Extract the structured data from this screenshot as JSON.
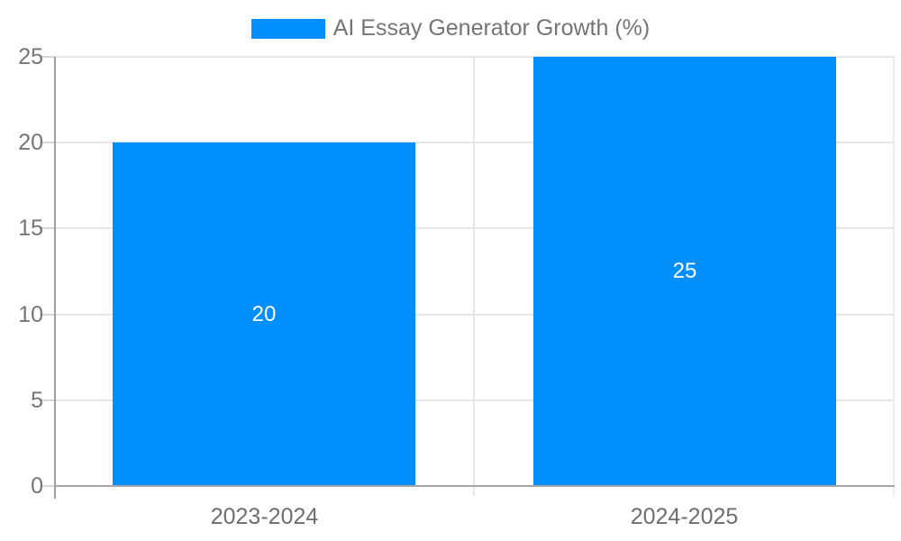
{
  "legend": {
    "label": "AI Essay Generator Growth (%)"
  },
  "axes": {
    "y": {
      "ticks": [
        "25",
        "20",
        "15",
        "10",
        "5",
        "0"
      ]
    },
    "x": {
      "labels": [
        "2023-2024",
        "2024-2025"
      ]
    }
  },
  "bars": {
    "labels": [
      "20",
      "25"
    ]
  },
  "colors": {
    "bar": "#008FFB",
    "gridline": "#e6e6e6",
    "axis": "#9e9e9e",
    "axis_text": "#757575",
    "data_label": "#ffffff"
  },
  "chart_data": {
    "type": "bar",
    "categories": [
      "2023-2024",
      "2024-2025"
    ],
    "values": [
      20,
      25
    ],
    "title": "AI Essay Generator Growth (%)",
    "xlabel": "",
    "ylabel": "",
    "ylim": [
      0,
      25
    ],
    "yticks": [
      0,
      5,
      10,
      15,
      20,
      25
    ],
    "grid": true,
    "legend_position": "top",
    "bar_color": "#008FFB",
    "data_labels": [
      20,
      25
    ],
    "data_label_position": "center",
    "data_label_color": "#ffffff"
  }
}
